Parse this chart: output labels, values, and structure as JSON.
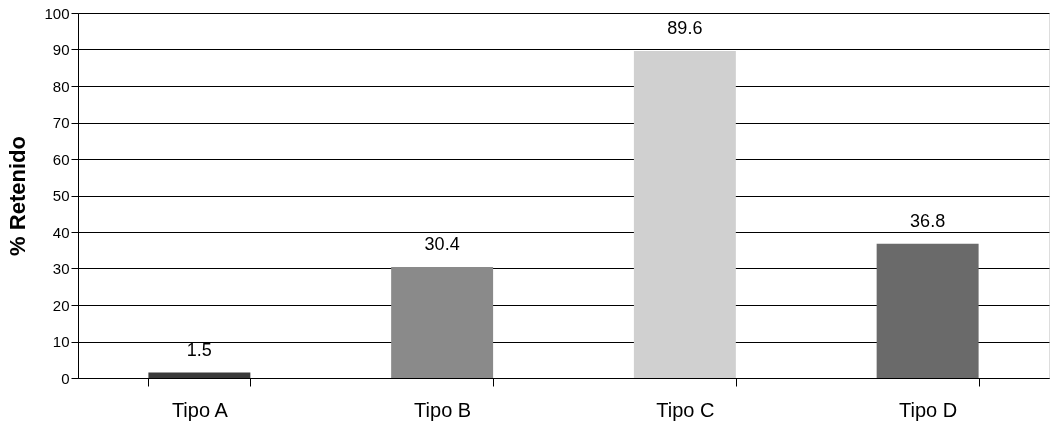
{
  "chart_data": {
    "type": "bar",
    "ylabel": "% Retenido",
    "categories": [
      "Tipo A",
      "Tipo B",
      "Tipo C",
      "Tipo D"
    ],
    "values": [
      1.5,
      30.4,
      89.6,
      36.8
    ],
    "colors": [
      "#3a3a3a",
      "#8a8a8a",
      "#d0d0d0",
      "#6a6a6a"
    ],
    "ylim": [
      0,
      100
    ],
    "yticks": [
      0,
      10,
      20,
      30,
      40,
      50,
      60,
      70,
      80,
      90,
      100
    ],
    "grid": "y",
    "data_labels": true,
    "legend": false
  }
}
